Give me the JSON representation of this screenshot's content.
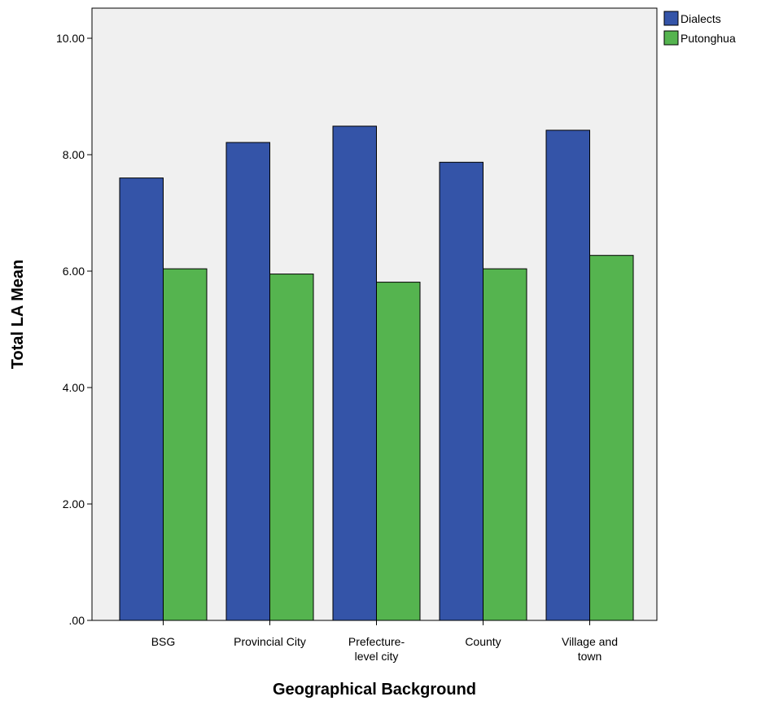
{
  "chart_data": {
    "type": "bar",
    "title": "",
    "xlabel": "Geographical Background",
    "ylabel": "Total LA Mean",
    "ylim": [
      0,
      10
    ],
    "yticks": [
      0,
      2,
      4,
      6,
      8,
      10
    ],
    "ytick_labels": [
      ".00",
      "2.00",
      "4.00",
      "6.00",
      "8.00",
      "10.00"
    ],
    "categories": [
      [
        "BSG"
      ],
      [
        "Provincial City"
      ],
      [
        "Prefecture-",
        "level city"
      ],
      [
        "County"
      ],
      [
        "Village and",
        "town"
      ]
    ],
    "series": [
      {
        "name": "Dialects",
        "color": "#3454a8",
        "values": [
          7.6,
          8.21,
          8.49,
          7.87,
          8.42
        ]
      },
      {
        "name": "Putonghua",
        "color": "#55b44f",
        "values": [
          6.04,
          5.95,
          5.81,
          6.04,
          6.27
        ]
      }
    ],
    "grid": false,
    "legend_position": "top-right",
    "plot_background": "#f0f0f0"
  }
}
